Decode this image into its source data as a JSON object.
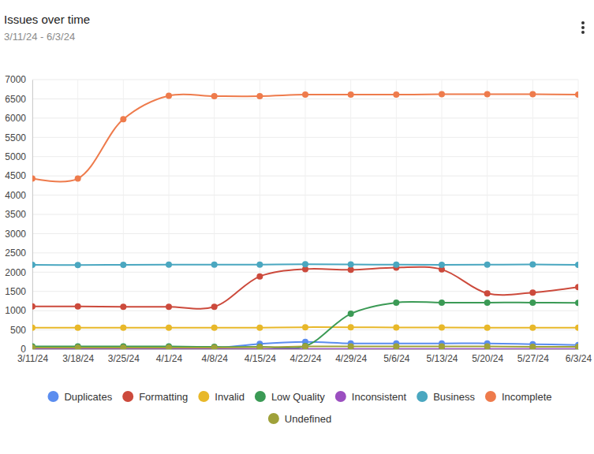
{
  "chart_data": {
    "type": "line",
    "title": "Issues over time",
    "subtitle": "3/11/24 - 6/3/24",
    "categories": [
      "3/11/24",
      "3/18/24",
      "3/25/24",
      "4/1/24",
      "4/8/24",
      "4/15/24",
      "4/22/24",
      "4/29/24",
      "5/6/24",
      "5/13/24",
      "5/20/24",
      "5/27/24",
      "6/3/24"
    ],
    "ylim": [
      0,
      7000
    ],
    "yticks": [
      0,
      500,
      1000,
      1500,
      2000,
      2500,
      3000,
      3500,
      4000,
      4500,
      5000,
      5500,
      6000,
      6500,
      7000
    ],
    "grid": true,
    "legend": "bottom",
    "marker": "circle",
    "line_style": "solid",
    "series": [
      {
        "name": "Duplicates",
        "color": "#5b8def",
        "values": [
          20,
          20,
          20,
          20,
          30,
          140,
          190,
          150,
          150,
          150,
          150,
          130,
          110
        ]
      },
      {
        "name": "Formatting",
        "color": "#cc4a3c",
        "values": [
          1110,
          1110,
          1100,
          1100,
          1100,
          1890,
          2080,
          2060,
          2120,
          2070,
          1450,
          1470,
          1610
        ]
      },
      {
        "name": "Invalid",
        "color": "#e8b82a",
        "values": [
          560,
          560,
          560,
          560,
          560,
          560,
          570,
          570,
          565,
          565,
          560,
          560,
          560
        ]
      },
      {
        "name": "Low Quality",
        "color": "#3b9a55",
        "values": [
          70,
          70,
          70,
          70,
          60,
          60,
          80,
          920,
          1210,
          1210,
          1210,
          1210,
          1200
        ]
      },
      {
        "name": "Inconsistent",
        "color": "#9b4fc0",
        "values": [
          5,
          5,
          5,
          5,
          5,
          5,
          5,
          5,
          5,
          5,
          5,
          5,
          5
        ]
      },
      {
        "name": "Business",
        "color": "#4aa7c0",
        "values": [
          2190,
          2185,
          2190,
          2195,
          2195,
          2195,
          2205,
          2200,
          2195,
          2190,
          2195,
          2200,
          2190
        ]
      },
      {
        "name": "Incomplete",
        "color": "#ee7b4c",
        "values": [
          4430,
          4430,
          5970,
          6580,
          6570,
          6570,
          6610,
          6610,
          6610,
          6620,
          6620,
          6620,
          6610
        ]
      },
      {
        "name": "Undefined",
        "color": "#9fa13a",
        "values": [
          40,
          40,
          40,
          40,
          40,
          50,
          70,
          70,
          70,
          70,
          70,
          60,
          60
        ]
      }
    ]
  }
}
